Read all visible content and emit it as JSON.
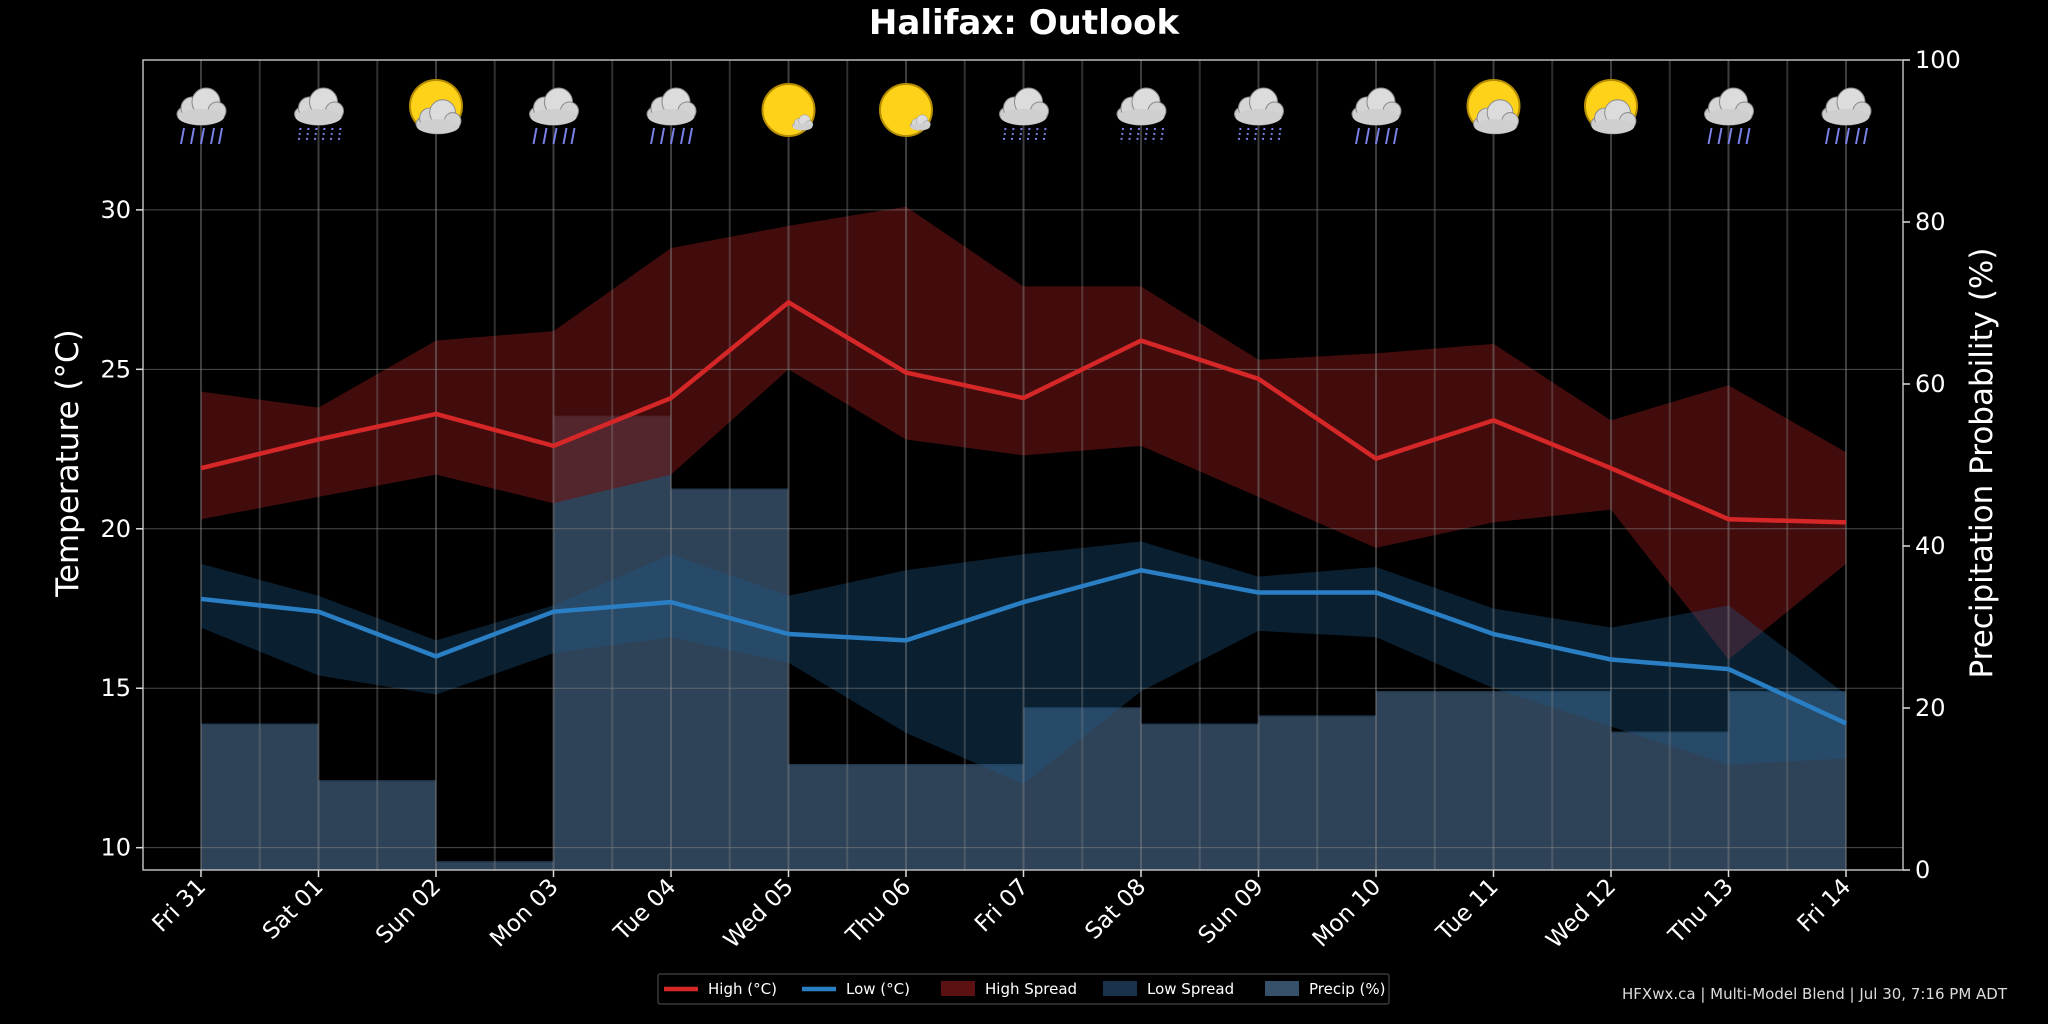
{
  "chart_data": {
    "type": "line",
    "title": "Halifax: Outlook",
    "ylabel_left": "Temperature (°C)",
    "ylabel_right": "Precipitation Probability (%)",
    "ylim_left": [
      9.3,
      34.7
    ],
    "ylim_right": [
      0,
      100
    ],
    "yticks_left": [
      10,
      15,
      20,
      25,
      30
    ],
    "yticks_right": [
      0,
      20,
      40,
      60,
      80,
      100
    ],
    "categories": [
      "Fri 31",
      "Sat 01",
      "Sun 02",
      "Mon 03",
      "Tue 04",
      "Wed 05",
      "Thu 06",
      "Fri 07",
      "Sat 08",
      "Sun 09",
      "Mon 10",
      "Tue 11",
      "Wed 12",
      "Thu 13",
      "Fri 14"
    ],
    "weather_icons": [
      "rain",
      "drizzle",
      "partly-sunny",
      "rain",
      "rain",
      "sunny",
      "sunny",
      "drizzle",
      "drizzle",
      "drizzle",
      "rain",
      "partly-sunny",
      "partly-sunny",
      "rain",
      "rain"
    ],
    "series": [
      {
        "name": "High (°C)",
        "type": "line",
        "color": "#d62728",
        "values": [
          21.9,
          22.8,
          23.6,
          22.6,
          24.1,
          27.1,
          24.9,
          24.1,
          25.9,
          24.7,
          22.2,
          23.4,
          21.9,
          20.3,
          20.2
        ]
      },
      {
        "name": "Low (°C)",
        "type": "line",
        "color": "#2a7fc4",
        "values": [
          17.8,
          17.4,
          16.0,
          17.4,
          17.7,
          16.7,
          16.5,
          17.7,
          18.7,
          18.0,
          18.0,
          16.7,
          15.9,
          15.6,
          13.9
        ]
      },
      {
        "name": "High Spread",
        "type": "band",
        "color": "#6b1414",
        "upper": [
          24.3,
          23.8,
          25.9,
          26.2,
          28.8,
          29.5,
          30.1,
          27.6,
          27.6,
          25.3,
          25.5,
          25.8,
          23.4,
          24.5,
          22.4
        ],
        "lower": [
          20.3,
          21.0,
          21.7,
          20.8,
          21.7,
          25.0,
          22.8,
          22.3,
          22.6,
          21.0,
          19.4,
          20.2,
          20.6,
          15.9,
          18.9
        ]
      },
      {
        "name": "Low Spread",
        "type": "band",
        "color": "#0e2a44",
        "upper": [
          18.9,
          17.9,
          16.5,
          17.6,
          19.2,
          17.9,
          18.7,
          19.2,
          19.6,
          18.5,
          18.8,
          17.5,
          16.9,
          17.6,
          14.8
        ],
        "lower": [
          16.9,
          15.4,
          14.8,
          16.1,
          16.6,
          15.8,
          13.6,
          12.0,
          14.9,
          16.8,
          16.6,
          15.0,
          13.8,
          12.6,
          12.8
        ]
      },
      {
        "name": "Precip (%)",
        "type": "step-area",
        "color": "#3d5a75",
        "values": [
          18,
          11,
          1,
          56,
          47,
          13,
          13,
          20,
          18,
          19,
          22,
          22,
          17,
          22,
          22
        ]
      }
    ],
    "legend_position": "bottom-center",
    "grid": true
  },
  "credit": "HFXwx.ca | Multi-Model Blend | Jul 30, 7:16 PM ADT"
}
